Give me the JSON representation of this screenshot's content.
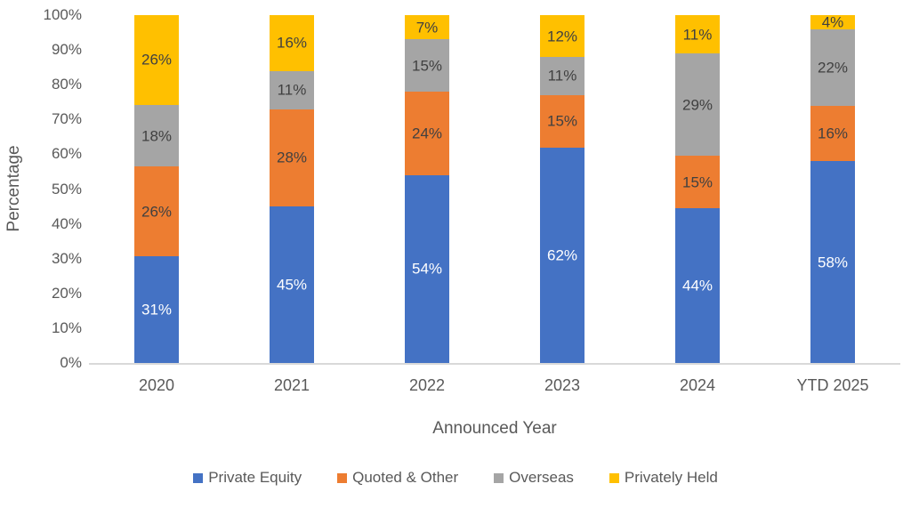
{
  "chart_data": {
    "type": "bar",
    "stacked": true,
    "title": "",
    "xlabel": "Announced Year",
    "ylabel": "Percentage",
    "categories": [
      "2020",
      "2021",
      "2022",
      "2023",
      "2024",
      "YTD 2025"
    ],
    "series": [
      {
        "name": "Private Equity",
        "color": "#4472C4",
        "label_color": "#FFFFFF",
        "values": [
          31,
          45,
          54,
          62,
          44,
          58
        ]
      },
      {
        "name": "Quoted & Other",
        "color": "#ED7D31",
        "label_color": "#404040",
        "values": [
          26,
          28,
          24,
          15,
          15,
          16
        ]
      },
      {
        "name": "Overseas",
        "color": "#A5A5A5",
        "label_color": "#404040",
        "values": [
          18,
          11,
          15,
          11,
          29,
          22
        ]
      },
      {
        "name": "Privately Held",
        "color": "#FFC000",
        "label_color": "#404040",
        "values": [
          26,
          16,
          7,
          12,
          11,
          4
        ]
      }
    ],
    "value_suffix": "%",
    "y_ticks": [
      "0%",
      "10%",
      "20%",
      "30%",
      "40%",
      "50%",
      "60%",
      "70%",
      "80%",
      "90%",
      "100%"
    ],
    "ylim": [
      0,
      100
    ],
    "grid": false,
    "legend_position": "bottom",
    "axis_line_color": "#D9D9D9",
    "tick_label_color": "#595959"
  }
}
